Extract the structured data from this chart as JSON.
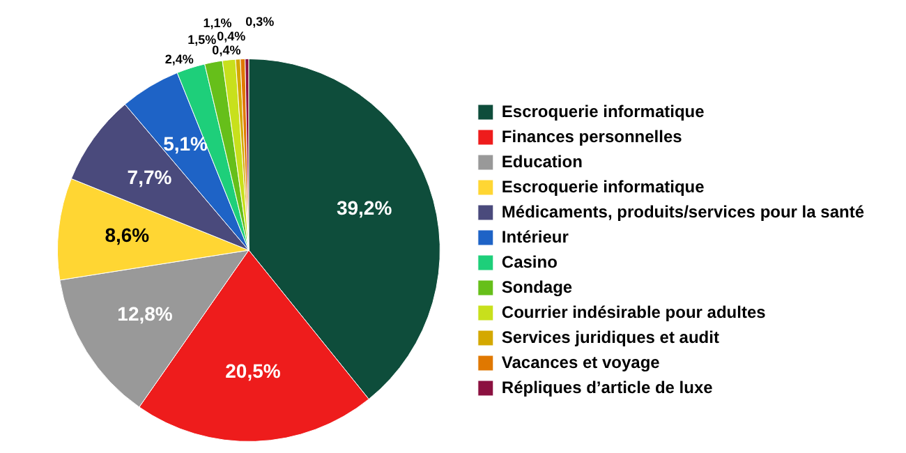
{
  "chart_data": {
    "type": "pie",
    "categories": [
      "Escroquerie informatique",
      "Finances personnelles",
      "Education",
      "Escroquerie informatique",
      "Médicaments, produits/services pour la santé",
      "Intérieur",
      "Casino",
      "Sondage",
      "Courrier indésirable pour adultes",
      "Services juridiques et audit",
      "Vacances et voyage",
      "Répliques d’article de luxe"
    ],
    "values": [
      39.2,
      20.5,
      12.8,
      8.6,
      7.7,
      5.1,
      2.4,
      1.5,
      1.1,
      0.4,
      0.4,
      0.3
    ],
    "value_labels": [
      "39,2%",
      "20,5%",
      "12,8%",
      "8,6%",
      "7,7%",
      "5,1%",
      "2,4%",
      "1,5%",
      "1,1%",
      "0,4%",
      "0,4%",
      "0,3%"
    ],
    "colors": [
      "#0e4d3b",
      "#ee1c1c",
      "#999999",
      "#ffd633",
      "#4a4a7c",
      "#1e63c6",
      "#1ecf7a",
      "#66bf1a",
      "#c8e01c",
      "#d4a800",
      "#e07800",
      "#8b1040"
    ],
    "legend": "right"
  }
}
